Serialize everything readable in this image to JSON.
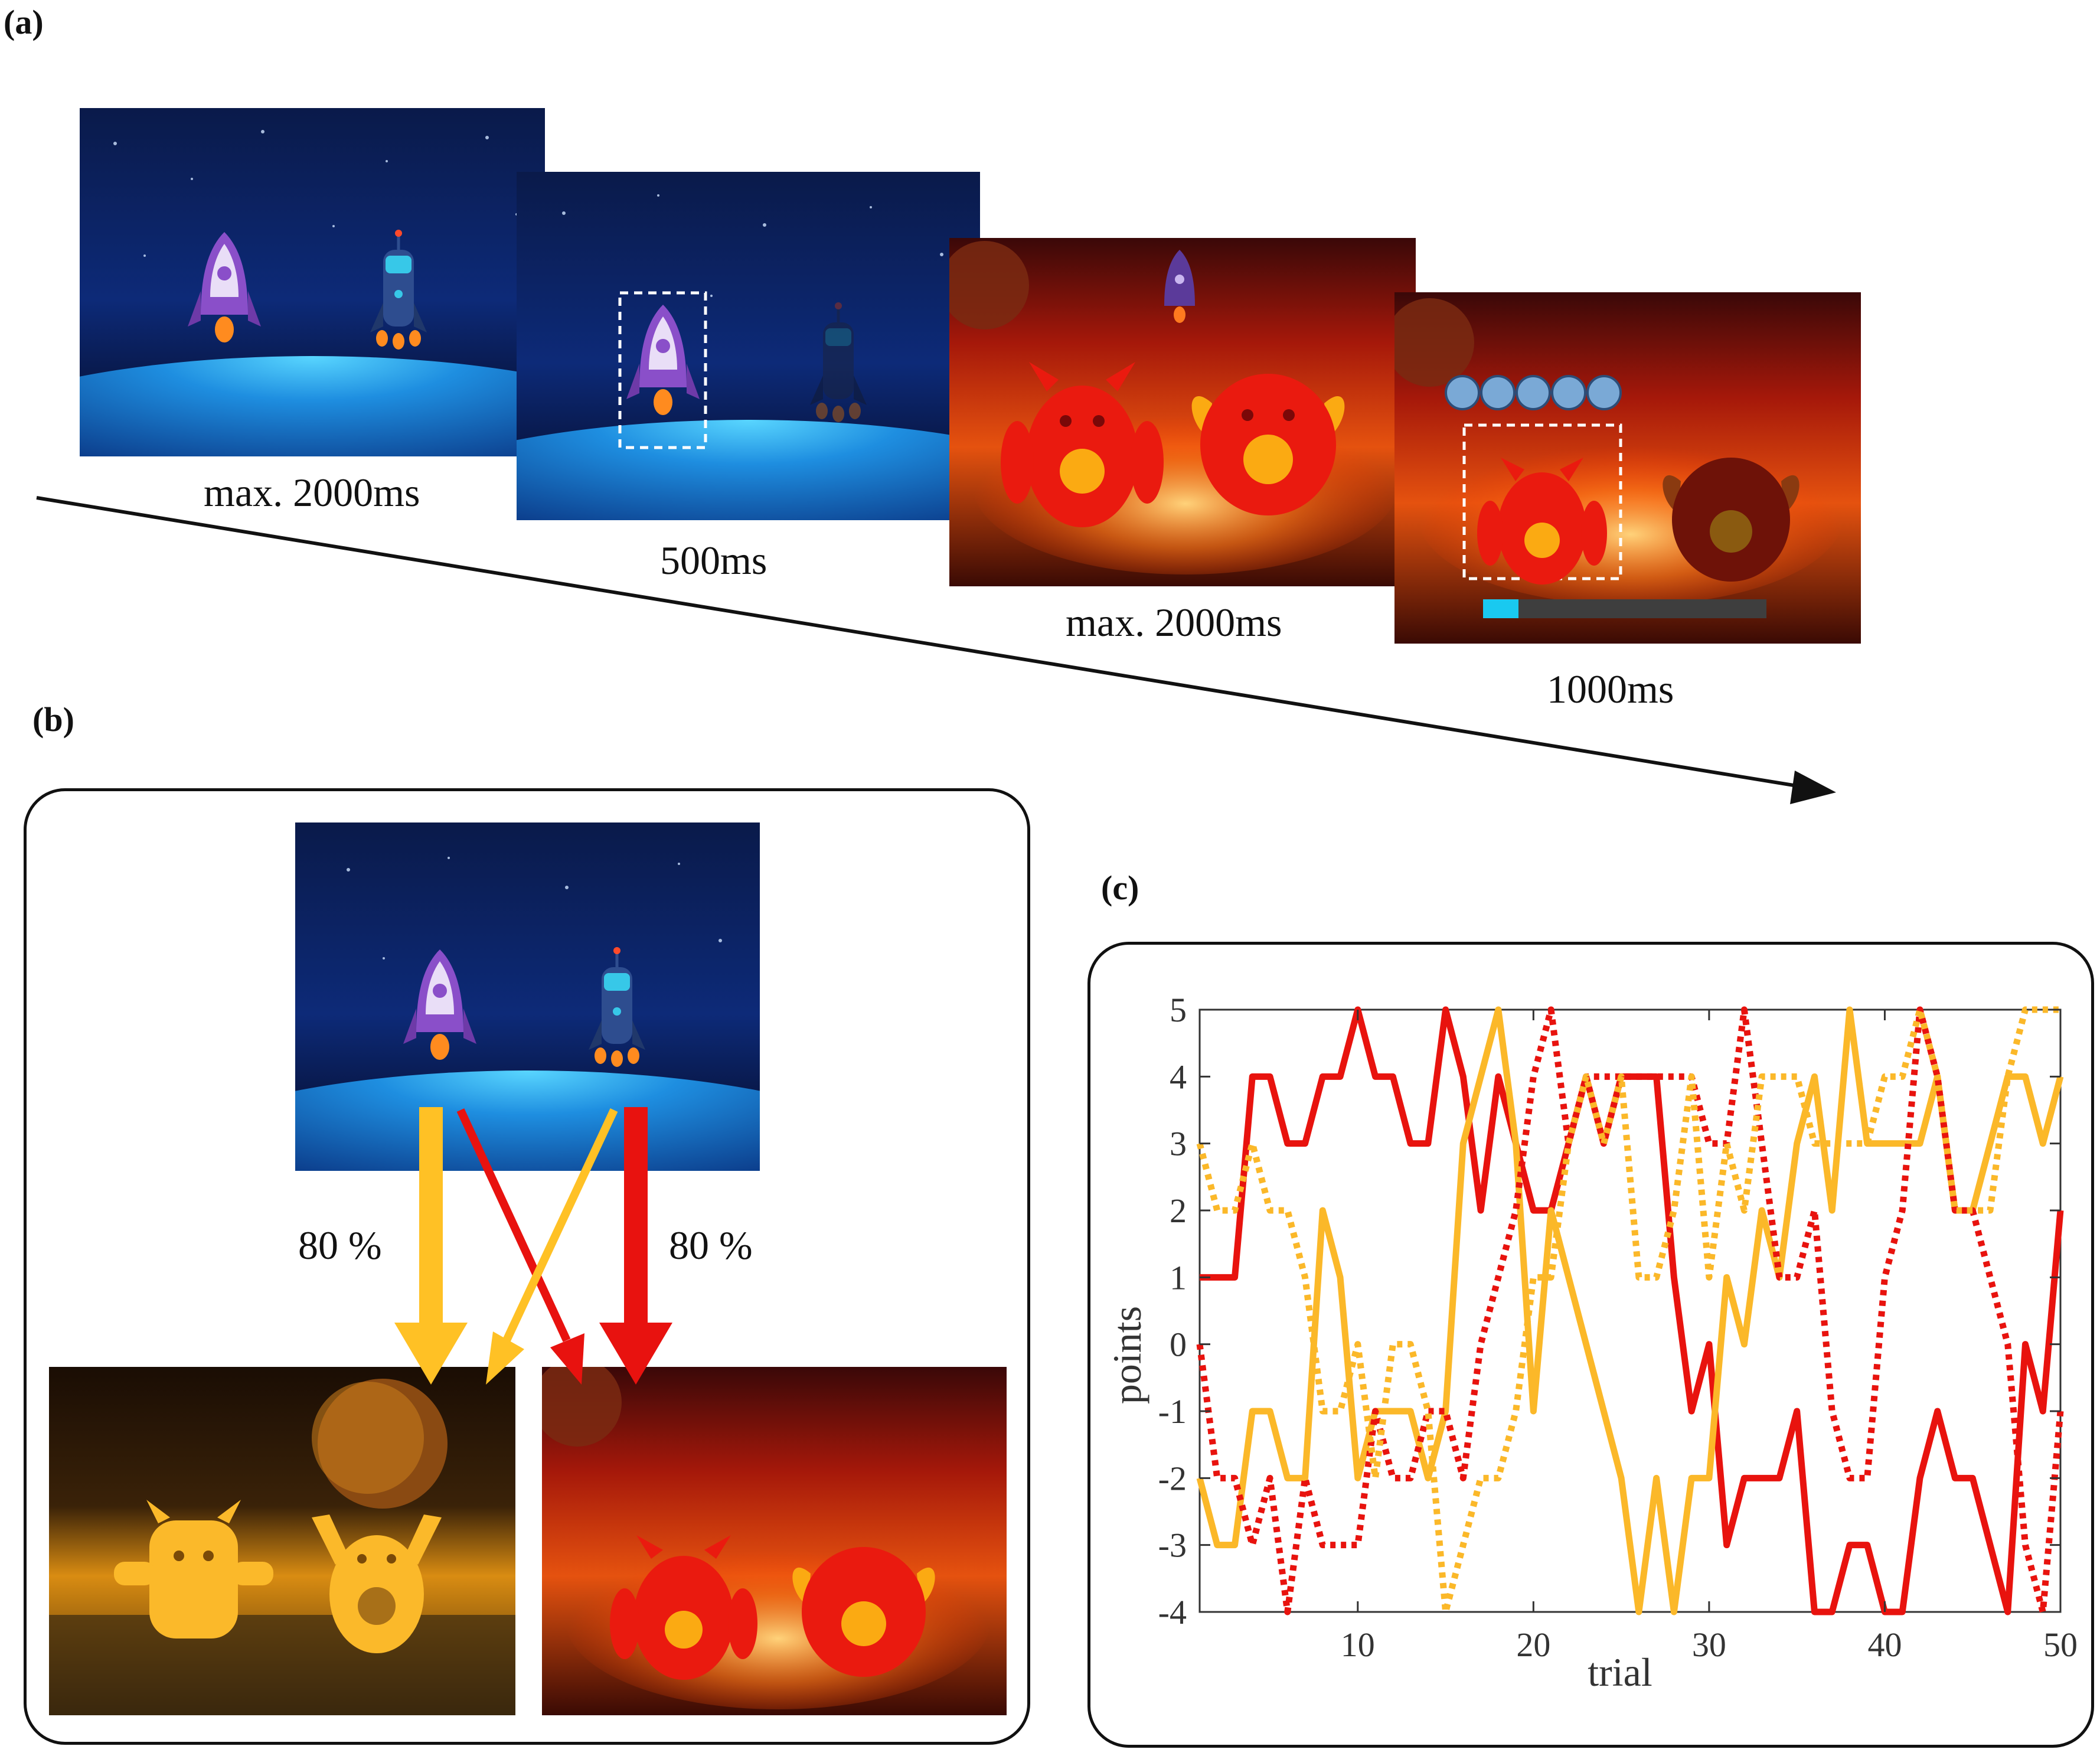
{
  "panels": {
    "a": {
      "label": "(a)",
      "frames": [
        {
          "duration": "max. 2000ms",
          "scene": "space-two-rockets"
        },
        {
          "duration": "500ms",
          "scene": "space-rocket-selected"
        },
        {
          "duration": "max. 2000ms",
          "scene": "red-planet-two-aliens"
        },
        {
          "duration": "1000ms",
          "scene": "red-planet-alien-selected-reward"
        }
      ]
    },
    "b": {
      "label": "(b)",
      "transitions": [
        {
          "from": "purple-rocket",
          "to": "yellow-planet",
          "label": "80 %",
          "color": "#FFC125"
        },
        {
          "from": "blue-rocket",
          "to": "red-planet",
          "label": "80 %",
          "color": "#E8120F"
        }
      ]
    },
    "c": {
      "label": "(c)"
    }
  },
  "colors": {
    "yellow": "#FBB829",
    "red": "#E8130E",
    "arrow_yellow": "#FFC125",
    "arrow_red": "#E8120F"
  },
  "chart_data": {
    "type": "line",
    "xlabel": "trial",
    "ylabel": "points",
    "xlim": [
      1,
      50
    ],
    "ylim": [
      -4,
      5
    ],
    "xticks": [
      10,
      20,
      30,
      40,
      50
    ],
    "yticks": [
      5,
      4,
      3,
      2,
      1,
      0,
      -1,
      -2,
      -3,
      -4
    ],
    "x": [
      1,
      2,
      3,
      4,
      5,
      6,
      7,
      8,
      9,
      10,
      11,
      12,
      13,
      14,
      15,
      16,
      17,
      18,
      19,
      20,
      21,
      22,
      23,
      24,
      25,
      26,
      27,
      28,
      29,
      30,
      31,
      32,
      33,
      34,
      35,
      36,
      37,
      38,
      39,
      40,
      41,
      42,
      43,
      44,
      45,
      46,
      47,
      48,
      49,
      50
    ],
    "series": [
      {
        "color": "#E8130E",
        "style": "solid",
        "values": [
          1,
          1,
          1,
          4,
          4,
          3,
          3,
          4,
          4,
          5,
          4,
          4,
          3,
          3,
          5,
          4,
          2,
          4,
          3,
          2,
          2,
          3,
          4,
          3,
          4,
          4,
          4,
          1,
          -1,
          0,
          -3,
          -2,
          -2,
          -2,
          -1,
          -4,
          -4,
          -3,
          -3,
          -4,
          -4,
          -2,
          -1,
          -2,
          -2,
          -3,
          -4,
          0,
          -1,
          2
        ]
      },
      {
        "color": "#FBB829",
        "style": "solid",
        "values": [
          -2,
          -3,
          -3,
          -1,
          -1,
          -2,
          -2,
          2,
          1,
          -2,
          -1,
          -1,
          -1,
          -2,
          -1,
          3,
          4,
          5,
          3,
          -1,
          2,
          1,
          0,
          -1,
          -2,
          -4,
          -2,
          -4,
          -2,
          -2,
          1,
          0,
          2,
          1,
          3,
          4,
          2,
          5,
          3,
          3,
          3,
          3,
          4,
          2,
          2,
          3,
          4,
          4,
          3,
          4
        ]
      },
      {
        "color": "#E8130E",
        "style": "dotted",
        "values": [
          0,
          -2,
          -2,
          -3,
          -2,
          -4,
          -2,
          -3,
          -3,
          -3,
          -1,
          -2,
          -2,
          -1,
          -1,
          -2,
          0,
          1,
          2,
          4,
          5,
          3,
          4,
          4,
          4,
          4,
          4,
          4,
          4,
          3,
          3,
          5,
          3,
          1,
          1,
          2,
          -1,
          -2,
          -2,
          1,
          2,
          5,
          4,
          2,
          2,
          1,
          0,
          -3,
          -4,
          -1
        ]
      },
      {
        "color": "#FBB829",
        "style": "dotted",
        "values": [
          3,
          2,
          2,
          3,
          2,
          2,
          1,
          -1,
          -1,
          0,
          -2,
          0,
          0,
          -1,
          -4,
          -3,
          -2,
          -2,
          -1,
          1,
          1,
          3,
          4,
          3,
          4,
          1,
          1,
          2,
          4,
          1,
          3,
          2,
          4,
          4,
          4,
          3,
          3,
          3,
          3,
          4,
          4,
          5,
          4,
          2,
          2,
          2,
          4,
          5,
          5,
          5
        ]
      }
    ]
  }
}
